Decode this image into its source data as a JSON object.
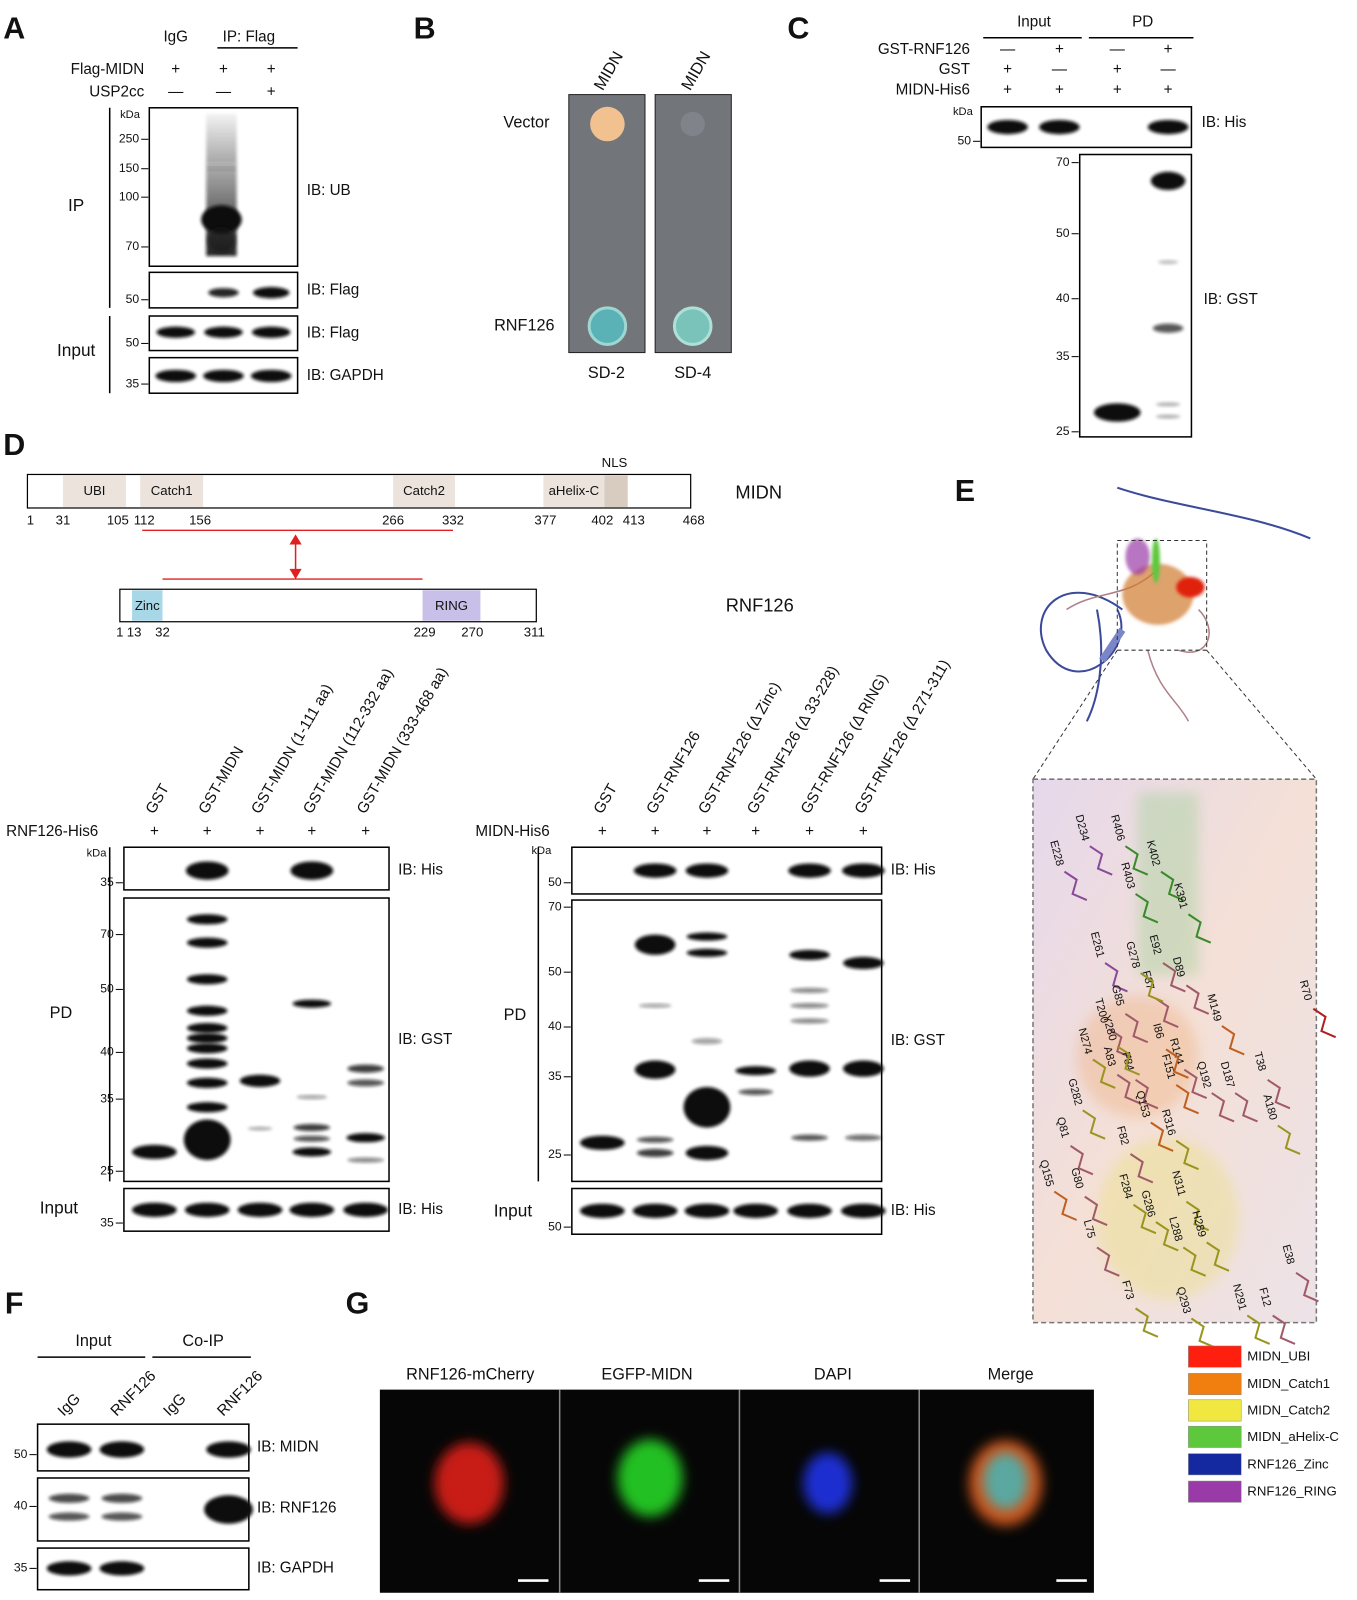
{
  "panel_labels": [
    "A",
    "B",
    "C",
    "D",
    "E",
    "F",
    "G"
  ],
  "A": {
    "columns": [
      "IgG",
      "IP: Flag"
    ],
    "rows": [
      {
        "name": "Flag-MIDN",
        "signs": [
          "+",
          "+",
          "+"
        ]
      },
      {
        "name": "USP2cc",
        "signs": [
          "—",
          "—",
          "+"
        ]
      }
    ],
    "unit": "kDa",
    "groups": [
      "IP",
      "Input"
    ],
    "blots": [
      {
        "ib": "IB: UB",
        "markers": [
          250,
          150,
          100,
          70
        ]
      },
      {
        "ib": "IB: Flag",
        "markers": [
          50
        ]
      },
      {
        "ib": "IB: Flag",
        "markers": [
          50
        ]
      },
      {
        "ib": "IB: GAPDH",
        "markers": [
          35
        ]
      }
    ]
  },
  "B": {
    "columns": [
      "MIDN",
      "MIDN"
    ],
    "rows": [
      "Vector",
      "RNF126"
    ],
    "media": [
      "SD-2",
      "SD-4"
    ]
  },
  "C": {
    "groups": [
      "Input",
      "PD"
    ],
    "rows": [
      {
        "name": "GST-RNF126",
        "signs": [
          "—",
          "+",
          "—",
          "+"
        ]
      },
      {
        "name": "GST",
        "signs": [
          "+",
          "—",
          "+",
          "—"
        ]
      },
      {
        "name": "MIDN-His6",
        "signs": [
          "+",
          "+",
          "+",
          "+"
        ]
      }
    ],
    "unit": "kDa",
    "blots": [
      {
        "ib": "IB: His",
        "markers": [
          50
        ]
      },
      {
        "ib": "IB: GST",
        "markers": [
          70,
          50,
          40,
          35,
          25
        ]
      }
    ]
  },
  "D": {
    "proteins": [
      {
        "name": "MIDN",
        "domains": [
          "UBI",
          "Catch1",
          "Catch2",
          "aHelix-C",
          "NLS"
        ],
        "positions": [
          1,
          31,
          105,
          112,
          156,
          266,
          332,
          377,
          402,
          413,
          468
        ]
      },
      {
        "name": "RNF126",
        "domains": [
          "Zinc",
          "RING"
        ],
        "positions": [
          1,
          13,
          32,
          229,
          270,
          311
        ]
      }
    ],
    "pulldowns": [
      {
        "lanes": [
          "GST",
          "GST-MIDN",
          "GST-MIDN (1-111 aa)",
          "GST-MIDN (112-332 aa)",
          "GST-MIDN (333-468 aa)"
        ],
        "row": {
          "name": "RNF126-His6",
          "signs": [
            "+",
            "+",
            "+",
            "+",
            "+"
          ]
        },
        "unit": "kDa",
        "groups": [
          "PD",
          "Input"
        ],
        "blots": [
          {
            "ib": "IB: His",
            "markers": [
              35
            ]
          },
          {
            "ib": "IB: GST",
            "markers": [
              70,
              50,
              40,
              35,
              25
            ]
          },
          {
            "ib": "IB: His",
            "markers": [
              35
            ]
          }
        ]
      },
      {
        "lanes": [
          "GST",
          "GST-RNF126",
          "GST-RNF126 (Δ Zinc)",
          "GST-RNF126 (Δ 33-228)",
          "GST-RNF126 (Δ RING)",
          "GST-RNF126 (Δ 271-311)"
        ],
        "row": {
          "name": "MIDN-His6",
          "signs": [
            "+",
            "+",
            "+",
            "+",
            "+",
            "+"
          ]
        },
        "unit": "kDa",
        "groups": [
          "PD",
          "Input"
        ],
        "blots": [
          {
            "ib": "IB: His",
            "markers": [
              50
            ]
          },
          {
            "ib": "IB: GST",
            "markers": [
              70,
              50,
              40,
              35,
              25
            ]
          },
          {
            "ib": "IB: His",
            "markers": [
              50
            ]
          }
        ]
      }
    ]
  },
  "E": {
    "residue_groups": [
      {
        "color": "#8a4a9a",
        "labels": [
          "E228",
          "D234",
          "E261"
        ]
      },
      {
        "color": "#3a8a2a",
        "labels": [
          "R406",
          "K402",
          "R403",
          "K391"
        ]
      },
      {
        "color": "#a05a6a",
        "labels": [
          "E92",
          "D89",
          "F87",
          "G85",
          "T200",
          "R144",
          "T38",
          "Q192",
          "D187",
          "Q81",
          "F82",
          "G80",
          "L75",
          "E38",
          "F12",
          "F84",
          "A83"
        ]
      },
      {
        "color": "#9a9420",
        "labels": [
          "G278",
          "Y280",
          "N274",
          "G282",
          "F284",
          "G286",
          "N311",
          "L288",
          "H289",
          "A180",
          "R316",
          "Q293",
          "N291",
          "F73"
        ]
      },
      {
        "color": "#c06020",
        "labels": [
          "M149",
          "Q155",
          "Q153",
          "F151",
          "I86"
        ]
      },
      {
        "color": "#b02020",
        "labels": [
          "R70"
        ]
      }
    ]
  },
  "F": {
    "groups": [
      "Input",
      "Co-IP"
    ],
    "lanes": [
      "IgG",
      "RNF126",
      "IgG",
      "RNF126"
    ],
    "blots": [
      {
        "ib": "IB: MIDN",
        "markers": [
          50
        ]
      },
      {
        "ib": "IB: RNF126",
        "markers": [
          40
        ]
      },
      {
        "ib": "IB: GAPDH",
        "markers": [
          35
        ]
      }
    ]
  },
  "G": {
    "channels": [
      {
        "name": "RNF126-mCherry",
        "color": "#e8291c"
      },
      {
        "name": "EGFP-MIDN",
        "color": "#1b9e1b"
      },
      {
        "name": "DAPI",
        "color": "#1a74d4"
      },
      {
        "name": "Merge",
        "color": "#222222"
      }
    ],
    "legend": [
      {
        "name": "MIDN_UBI",
        "color": "#ff1f0f"
      },
      {
        "name": "MIDN_Catch1",
        "color": "#f07f10"
      },
      {
        "name": "MIDN_Catch2",
        "color": "#f0e840"
      },
      {
        "name": "MIDN_aHelix-C",
        "color": "#5ec83c"
      },
      {
        "name": "RNF126_Zinc",
        "color": "#1428a0"
      },
      {
        "name": "RNF126_RING",
        "color": "#9a3aa8"
      }
    ]
  }
}
